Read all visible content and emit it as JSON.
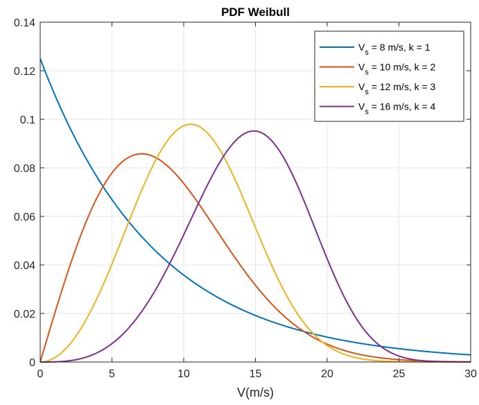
{
  "chart_data": {
    "type": "line",
    "title": "PDF Weibull",
    "xlabel": "V(m/s)",
    "ylabel": "",
    "xlim": [
      0,
      30
    ],
    "ylim": [
      0,
      0.14
    ],
    "xticks": [
      0,
      5,
      10,
      15,
      20,
      25,
      30
    ],
    "yticks": [
      0,
      0.02,
      0.04,
      0.06,
      0.08,
      0.1,
      0.12,
      0.14
    ],
    "xtick_labels": [
      "0",
      "5",
      "10",
      "15",
      "20",
      "25",
      "30"
    ],
    "ytick_labels": [
      "0",
      "0.02",
      "0.04",
      "0.06",
      "0.08",
      "0.1",
      "0.12",
      "0.14"
    ],
    "grid": true,
    "legend_position": "top-right",
    "series": [
      {
        "legend_main": "V",
        "legend_sub": "s",
        "legend_rest": " = 8 m/s, k = 1",
        "color": "#0072BD",
        "scale": 8,
        "shape": 1
      },
      {
        "legend_main": "V",
        "legend_sub": "s",
        "legend_rest": " = 10 m/s, k = 2",
        "color": "#D95319",
        "scale": 10,
        "shape": 2
      },
      {
        "legend_main": "V",
        "legend_sub": "s",
        "legend_rest": " = 12 m/s, k = 3",
        "color": "#EDB120",
        "scale": 12,
        "shape": 3
      },
      {
        "legend_main": "V",
        "legend_sub": "s",
        "legend_rest": " = 16 m/s, k = 4",
        "color": "#7E2F8E",
        "scale": 16,
        "shape": 4
      }
    ]
  }
}
